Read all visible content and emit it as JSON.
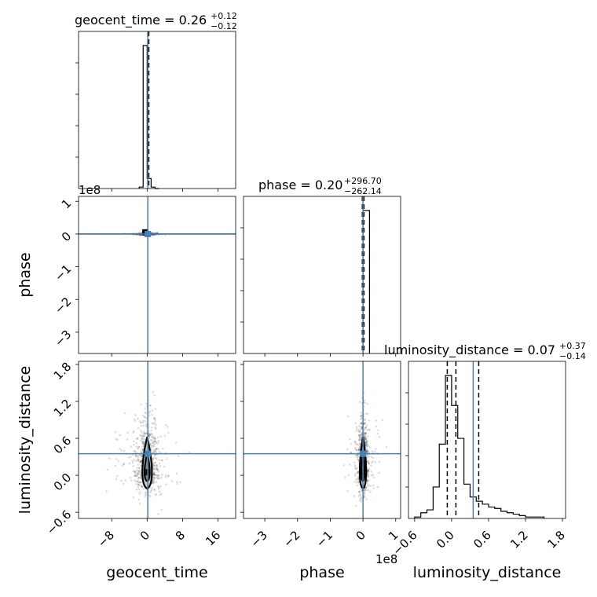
{
  "chart_data": {
    "type": "corner",
    "parameters": [
      "geocent_time",
      "phase",
      "luminosity_distance"
    ],
    "titles": [
      {
        "param": "geocent_time",
        "text": "geocent_time = 0.26",
        "upper": "+0.12",
        "lower": "−0.12"
      },
      {
        "param": "phase",
        "text": "phase = 0.20",
        "upper": "+296.70",
        "lower": "−262.14"
      },
      {
        "param": "luminosity_distance",
        "text": "luminosity_distance = 0.07",
        "upper": "+0.37",
        "lower": "−0.14"
      }
    ],
    "axis_offsets": {
      "phase": "1e8"
    },
    "ranges": {
      "geocent_time": [
        -15.5,
        20
      ],
      "phase": [
        -3.65,
        1.15
      ],
      "luminosity_distance": [
        -0.7,
        1.85
      ]
    },
    "ticks": {
      "geocent_time": {
        "values": [
          -8,
          0,
          8,
          16
        ],
        "labels": [
          "−8",
          "0",
          "8",
          "16"
        ]
      },
      "phase": {
        "values": [
          -3,
          -2,
          -1,
          0,
          1
        ],
        "labels": [
          "−3",
          "−2",
          "−1",
          "0",
          "1"
        ]
      },
      "luminosity_distance": {
        "values": [
          -0.6,
          0,
          0.6,
          1.2,
          1.8
        ],
        "labels": [
          "−0.6",
          "0.0",
          "0.6",
          "1.2",
          "1.8"
        ]
      }
    },
    "truths": {
      "geocent_time": 0.15,
      "phase": 0.0,
      "luminosity_distance": 0.35
    },
    "quantiles": {
      "geocent_time": [
        0.14,
        0.26,
        0.38
      ],
      "phase": [
        -0.02,
        0.0,
        0.03
      ],
      "luminosity_distance": [
        -0.07,
        0.07,
        0.44
      ]
    },
    "histograms": {
      "geocent_time": {
        "edges": [
          -1.8,
          -0.9,
          0,
          0.9,
          1.8,
          2.7
        ],
        "counts": [
          0.01,
          1.0,
          0.07,
          0.01,
          0.0
        ],
        "ylabels_visible": false
      },
      "phase": {
        "edges": [
          0.0,
          0.2
        ],
        "counts": [
          1.0
        ]
      },
      "luminosity_distance": {
        "edges": [
          -0.6,
          -0.5,
          -0.4,
          -0.3,
          -0.2,
          -0.1,
          0.0,
          0.1,
          0.2,
          0.3,
          0.4,
          0.5,
          0.6,
          0.7,
          0.8,
          0.9,
          1.0,
          1.1,
          1.2,
          1.3,
          1.4,
          1.5
        ],
        "counts": [
          0.01,
          0.04,
          0.06,
          0.22,
          0.52,
          1.0,
          0.79,
          0.56,
          0.24,
          0.15,
          0.12,
          0.1,
          0.08,
          0.07,
          0.05,
          0.04,
          0.03,
          0.02,
          0.01,
          0.01,
          0.01
        ]
      }
    },
    "contours": {
      "geocent_time_vs_luminosity_distance": {
        "center": [
          0.0,
          0.05
        ],
        "levels": [
          {
            "rx": 0.6,
            "ry": 0.12,
            "h": 0.65
          },
          {
            "rx": 1.1,
            "ry": 0.22,
            "h": 0.95
          }
        ]
      },
      "phase_vs_luminosity_distance": {
        "center": [
          0.0,
          0.05
        ],
        "levels": [
          {
            "rx": 0.05,
            "ry": 0.12,
            "h": 0.65
          },
          {
            "rx": 0.1,
            "ry": 0.22,
            "h": 0.95
          }
        ]
      },
      "geocent_time_vs_phase": {
        "center": [
          -0.4,
          0.05
        ]
      }
    },
    "grid": true,
    "legend": "none"
  }
}
